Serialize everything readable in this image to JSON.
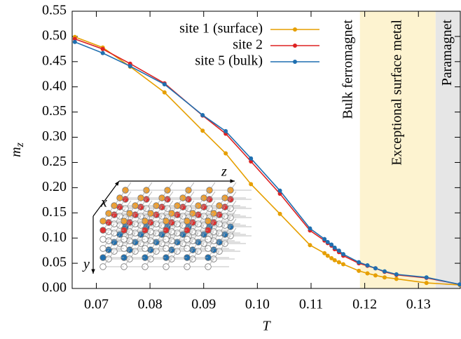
{
  "chart_data": {
    "type": "line",
    "xlabel": "T",
    "ylabel": "m",
    "ylabel_sub": "z",
    "xlim": [
      0.0655,
      0.1378
    ],
    "ylim": [
      0,
      0.55
    ],
    "xticks": [
      {
        "value": 0.07,
        "label": "0.07"
      },
      {
        "value": 0.08,
        "label": "0.08"
      },
      {
        "value": 0.09,
        "label": "0.09"
      },
      {
        "value": 0.1,
        "label": "0.10"
      },
      {
        "value": 0.11,
        "label": "0.11"
      },
      {
        "value": 0.12,
        "label": "0.12"
      },
      {
        "value": 0.13,
        "label": "0.13"
      }
    ],
    "yticks": [
      {
        "value": 0,
        "label": "0.00"
      },
      0.05,
      {
        "value": 0.1,
        "label": "0.10"
      },
      0.15,
      {
        "value": 0.2,
        "label": "0.20"
      },
      0.25,
      {
        "value": 0.3,
        "label": "0.30"
      },
      0.35,
      {
        "value": 0.4,
        "label": "0.40"
      },
      0.45,
      {
        "value": 0.5,
        "label": "0.50"
      },
      0.55
    ],
    "x": [
      0.066,
      0.0712,
      0.0763,
      0.0827,
      0.0898,
      0.0941,
      0.0988,
      0.1042,
      0.1098,
      0.1125,
      0.1131,
      0.1138,
      0.1144,
      0.1152,
      0.116,
      0.1189,
      0.1205,
      0.122,
      0.1237,
      0.1259,
      0.1315,
      0.1377
    ],
    "series": [
      {
        "name": "site 1 (surface)",
        "color": "#e69f00",
        "values": [
          0.499,
          0.478,
          0.44,
          0.389,
          0.313,
          0.268,
          0.207,
          0.148,
          0.086,
          0.07,
          0.065,
          0.06,
          0.056,
          0.052,
          0.048,
          0.035,
          0.03,
          0.026,
          0.022,
          0.019,
          0.011,
          0.007
        ]
      },
      {
        "name": "site 2",
        "color": "#dd2222",
        "values": [
          0.495,
          0.475,
          0.446,
          0.407,
          0.343,
          0.307,
          0.252,
          0.188,
          0.115,
          0.095,
          0.09,
          0.085,
          0.078,
          0.072,
          0.065,
          0.05,
          0.045,
          0.04,
          0.033,
          0.027,
          0.021,
          0.008
        ]
      },
      {
        "name": "site 5 (bulk)",
        "color": "#1f6fb0",
        "values": [
          0.489,
          0.467,
          0.441,
          0.405,
          0.344,
          0.312,
          0.258,
          0.194,
          0.119,
          0.098,
          0.092,
          0.087,
          0.081,
          0.075,
          0.068,
          0.052,
          0.046,
          0.04,
          0.034,
          0.028,
          0.022,
          0.008
        ]
      }
    ],
    "regions": [
      {
        "label": "Bulk ferromagnet",
        "start": 0.0655,
        "end": 0.1191,
        "color": "none"
      },
      {
        "label": "Exceptional surface metal",
        "start": 0.1191,
        "end": 0.1332,
        "color": "#fdf3d0"
      },
      {
        "label": "Paramagnet",
        "start": 0.1332,
        "end": 0.1378,
        "color": "#e6e6e6"
      }
    ],
    "inset": {
      "axis_labels": [
        "x",
        "y",
        "z"
      ]
    }
  }
}
